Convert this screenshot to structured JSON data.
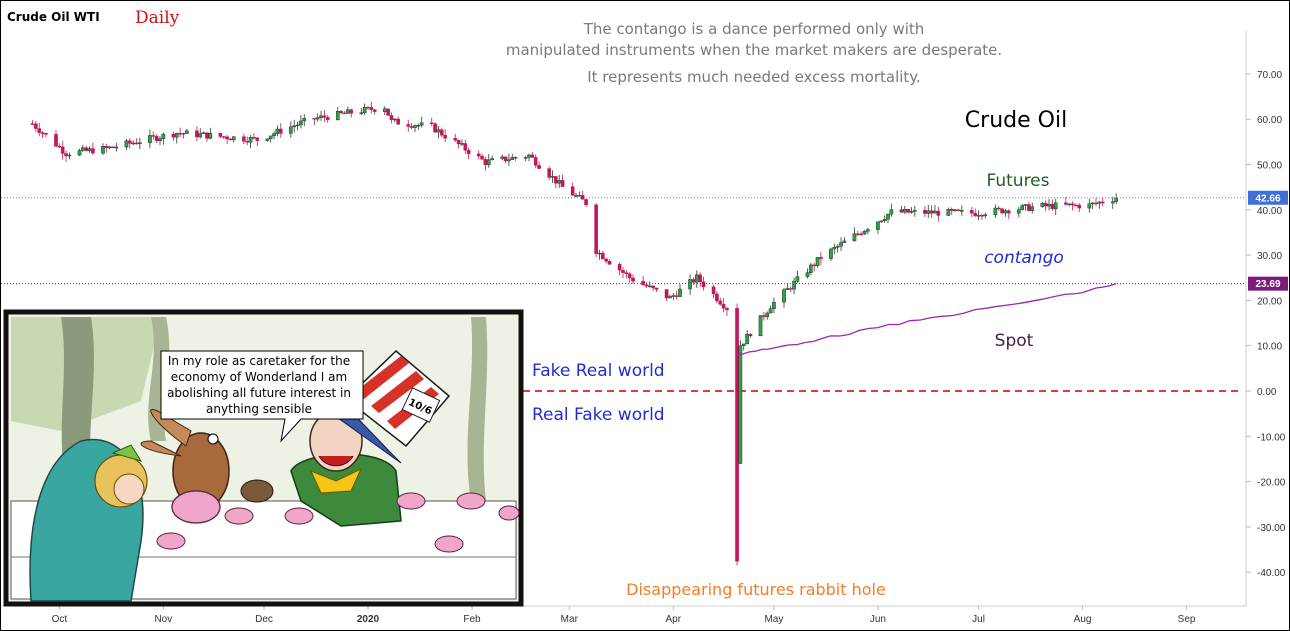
{
  "header": {
    "instrument": "Crude Oil WTI",
    "timeframe": "Daily"
  },
  "quote": {
    "line1": "The contango is a dance performed only with",
    "line2": "manipulated instruments when the market makers are desperate.",
    "line3": "It represents much needed excess mortality."
  },
  "annotations": {
    "title": "Crude Oil",
    "futures": "Futures",
    "contango": "contango",
    "spot": "Spot",
    "fake_real": "Fake Real world",
    "real_fake": "Real Fake world",
    "rabbit_hole": "Disappearing futures rabbit hole"
  },
  "cartoon": {
    "bubble_line1": "In my role as caretaker for the",
    "bubble_line2": "economy of Wonderland I am",
    "bubble_line3": "abolishing all future interest in",
    "bubble_line4": "anything sensible",
    "hat_label": "10/6"
  },
  "colors": {
    "up": "#26a641",
    "down": "#c2185b",
    "futures_price_badge": "#3f6fd8",
    "spot_price_badge": "#7b1c7b",
    "spot_line": "#9c27b0",
    "zero_line": "#e53935",
    "annotation_blue": "#1f2ed0",
    "annotation_green": "#1f5c1f",
    "annotation_purple": "#4a1b4a",
    "annotation_orange": "#f57c22"
  },
  "chart_data": {
    "type": "candlestick",
    "y_axis": {
      "ylim": [
        -45,
        80
      ],
      "ticks": [
        "70.00",
        "60.00",
        "50.00",
        "40.00",
        "30.00",
        "20.00",
        "10.00",
        "0.00",
        "-10.00",
        "-20.00",
        "-30.00",
        "-40.00"
      ]
    },
    "x_axis": {
      "labels": [
        "Oct",
        "Nov",
        "Dec",
        "2020",
        "Feb",
        "Mar",
        "Apr",
        "May",
        "Jun",
        "Jul",
        "Aug",
        "Sep"
      ]
    },
    "price_badges": {
      "futures": "42.66",
      "spot": "23.69"
    },
    "zero_line_value": 0,
    "futures_series": {
      "name": "Futures",
      "anchors": [
        [
          "2019-09-23",
          59
        ],
        [
          "2019-10-03",
          52.5
        ],
        [
          "2019-10-15",
          53.5
        ],
        [
          "2019-11-05",
          57
        ],
        [
          "2019-11-29",
          55.5
        ],
        [
          "2019-12-15",
          60
        ],
        [
          "2020-01-06",
          62.7
        ],
        [
          "2020-01-08",
          59.5
        ],
        [
          "2020-01-20",
          58.3
        ],
        [
          "2020-02-05",
          50.5
        ],
        [
          "2020-02-18",
          52
        ],
        [
          "2020-02-28",
          45
        ],
        [
          "2020-03-06",
          41.5
        ],
        [
          "2020-03-09",
          31
        ],
        [
          "2020-03-19",
          25
        ],
        [
          "2020-03-31",
          20.5
        ],
        [
          "2020-04-08",
          25
        ],
        [
          "2020-04-17",
          18.3
        ],
        [
          "2020-04-20",
          -37.6
        ],
        [
          "2020-04-21",
          10
        ],
        [
          "2020-04-30",
          18.8
        ],
        [
          "2020-05-15",
          29.5
        ],
        [
          "2020-06-05",
          39.5
        ],
        [
          "2020-06-30",
          39.3
        ],
        [
          "2020-07-20",
          40.8
        ],
        [
          "2020-08-03",
          41
        ],
        [
          "2020-08-11",
          42.66
        ]
      ]
    },
    "spot_series": {
      "name": "Spot",
      "anchors": [
        [
          "2020-04-20",
          8
        ],
        [
          "2020-05-01",
          9.5
        ],
        [
          "2020-05-15",
          11.5
        ],
        [
          "2020-06-01",
          14
        ],
        [
          "2020-06-20",
          16.5
        ],
        [
          "2020-07-10",
          19
        ],
        [
          "2020-07-30",
          21.5
        ],
        [
          "2020-08-11",
          23.69
        ]
      ]
    }
  }
}
